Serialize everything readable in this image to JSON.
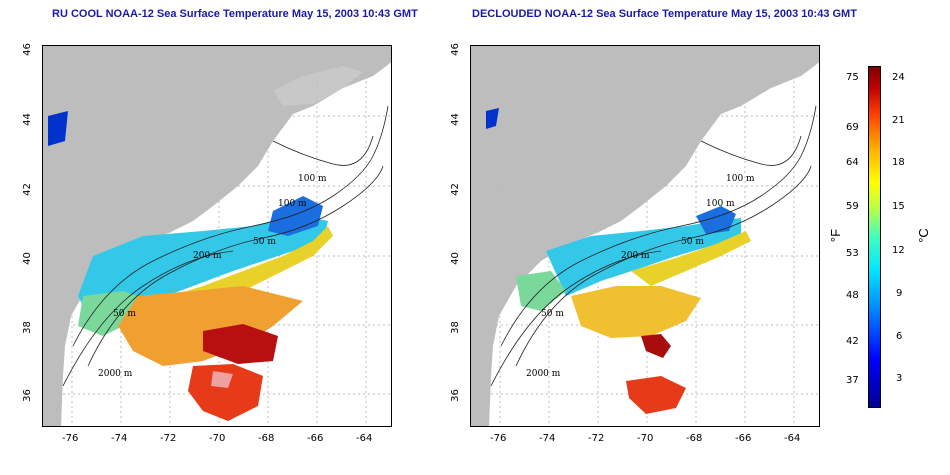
{
  "left_map": {
    "title": "RU COOL NOAA-12 Sea Surface Temperature May 15, 2003 10:43 GMT",
    "lat_ticks": [
      "46",
      "44",
      "42",
      "40",
      "38",
      "36"
    ],
    "lon_ticks": [
      "-76",
      "-74",
      "-72",
      "-70",
      "-68",
      "-66",
      "-64"
    ],
    "contour_labels": [
      "100 m",
      "100 m",
      "50 m",
      "200 m",
      "50 m",
      "2000 m"
    ]
  },
  "right_map": {
    "title": "DECLOUDED NOAA-12 Sea Surface Temperature May 15, 2003 10:43 GMT",
    "lat_ticks": [
      "46",
      "44",
      "42",
      "40",
      "38",
      "36"
    ],
    "lon_ticks": [
      "-76",
      "-74",
      "-72",
      "-70",
      "-68",
      "-66",
      "-64"
    ],
    "contour_labels": [
      "100 m",
      "100 m",
      "50 m",
      "200 m",
      "50 m",
      "2000 m"
    ]
  },
  "colorbar": {
    "fahrenheit_ticks": [
      "75",
      "69",
      "64",
      "59",
      "53",
      "48",
      "42",
      "37"
    ],
    "celsius_ticks": [
      "24",
      "21",
      "18",
      "15",
      "12",
      "9",
      "6",
      "3"
    ],
    "fahrenheit_unit": "°F",
    "celsius_unit": "°C"
  },
  "colors": {
    "land": "#bdbdbd",
    "title": "#1a1aa6",
    "grid": "#bbbbbb"
  }
}
